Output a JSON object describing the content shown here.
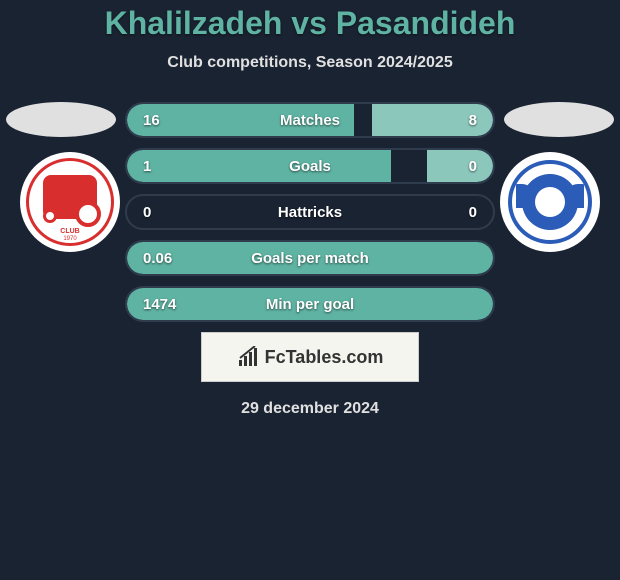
{
  "header": {
    "title": "Khalilzadeh vs Pasandideh",
    "subtitle": "Club competitions, Season 2024/2025"
  },
  "colors": {
    "background": "#1a2332",
    "accent": "#5fb3a3",
    "bar_left": "#5fb3a3",
    "bar_right": "#8cc7bc",
    "team1_primary": "#d92e2e",
    "team2_primary": "#2a5cb8"
  },
  "stats": [
    {
      "label": "Matches",
      "left_value": "16",
      "right_value": "8",
      "left_pct": 62,
      "right_pct": 33
    },
    {
      "label": "Goals",
      "left_value": "1",
      "right_value": "0",
      "left_pct": 72,
      "right_pct": 18
    },
    {
      "label": "Hattricks",
      "left_value": "0",
      "right_value": "0",
      "left_pct": 0,
      "right_pct": 0
    },
    {
      "label": "Goals per match",
      "left_value": "0.06",
      "right_value": "",
      "left_pct": 100,
      "right_pct": 0
    },
    {
      "label": "Min per goal",
      "left_value": "1474",
      "right_value": "",
      "left_pct": 100,
      "right_pct": 0
    }
  ],
  "brand": "FcTables.com",
  "date": "29 december 2024",
  "team1_logo_text": {
    "club": "CLUB",
    "year": "1970"
  }
}
